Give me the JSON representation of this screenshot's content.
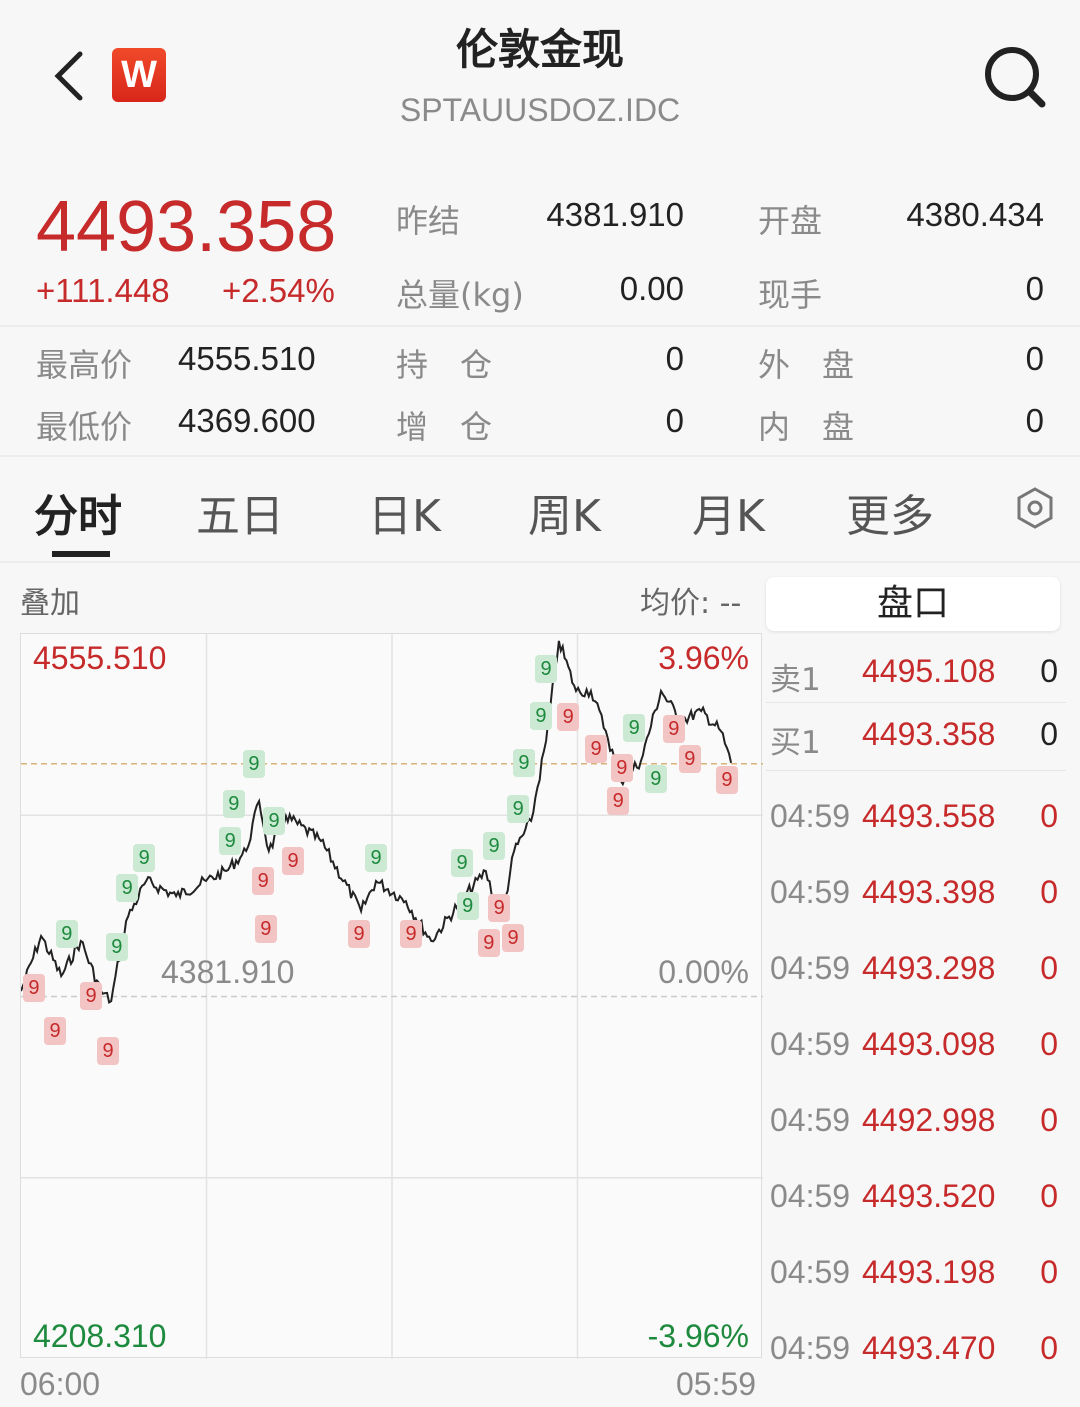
{
  "header": {
    "title": "伦敦金现",
    "code": "SPTAUUSDOZ.IDC",
    "logo_text": "W",
    "back_icon": "chevron-left-icon",
    "search_icon": "search-icon"
  },
  "quote": {
    "price": "4493.358",
    "change": "+111.448",
    "change_pct": "+2.54%",
    "stats": [
      {
        "label": "昨结",
        "value": "4381.910"
      },
      {
        "label": "开盘",
        "value": "4380.434"
      },
      {
        "label": "总量(kg)",
        "value": "0.00"
      },
      {
        "label": "现手",
        "value": "0"
      },
      {
        "label": "最高价",
        "value": "4555.510"
      },
      {
        "label": "持　仓",
        "value": "0"
      },
      {
        "label": "外　盘",
        "value": "0"
      },
      {
        "label": "最低价",
        "value": "4369.600"
      },
      {
        "label": "增　仓",
        "value": "0"
      },
      {
        "label": "内　盘",
        "value": "0"
      }
    ]
  },
  "tabs": [
    {
      "label": "分时",
      "active": true
    },
    {
      "label": "五日"
    },
    {
      "label": "日K"
    },
    {
      "label": "周K"
    },
    {
      "label": "月K"
    },
    {
      "label": "更多"
    }
  ],
  "settings_icon": "hexagon-settings-icon",
  "chart_toolbar": {
    "overlay": "叠加",
    "avg_price": "均价: --"
  },
  "orderbook": {
    "tab": "盘口",
    "levels": [
      {
        "label": "卖1",
        "price": "4495.108",
        "qty": "0"
      },
      {
        "label": "买1",
        "price": "4493.358",
        "qty": "0"
      }
    ],
    "ticks": [
      {
        "time": "04:59",
        "price": "4493.558",
        "qty": "0"
      },
      {
        "time": "04:59",
        "price": "4493.398",
        "qty": "0"
      },
      {
        "time": "04:59",
        "price": "4493.298",
        "qty": "0"
      },
      {
        "time": "04:59",
        "price": "4493.098",
        "qty": "0"
      },
      {
        "time": "04:59",
        "price": "4492.998",
        "qty": "0"
      },
      {
        "time": "04:59",
        "price": "4493.520",
        "qty": "0"
      },
      {
        "time": "04:59",
        "price": "4493.198",
        "qty": "0"
      },
      {
        "time": "04:59",
        "price": "4493.470",
        "qty": "0"
      }
    ]
  },
  "colors": {
    "up": "#c62a2a",
    "down": "#1e8a3e",
    "line": "#222222"
  },
  "chart_data": {
    "type": "line",
    "ylim": [
      4208.31,
      4555.51
    ],
    "reference": 4381.91,
    "current": 4493.358,
    "y_labels": {
      "top": "4555.510",
      "mid": "4381.910",
      "bottom": "4208.310"
    },
    "pct_labels": {
      "top": "3.96%",
      "mid": "0.00%",
      "bottom": "-3.96%"
    },
    "x_labels": {
      "start": "06:00",
      "end": "05:59"
    },
    "grid": true,
    "series": [
      {
        "x": [
          "06:00",
          "06:39",
          "07:18",
          "07:56",
          "08:35",
          "08:55",
          "09:24",
          "10:03",
          "11:01",
          "11:59",
          "12:38",
          "13:17",
          "13:42",
          "14:01",
          "14:34",
          "15:42",
          "17:00",
          "17:29",
          "18:27",
          "19:16",
          "20:14",
          "21:02",
          "21:32",
          "21:57",
          "22:30",
          "22:59",
          "23:24",
          "23:57",
          "00:26",
          "00:55",
          "01:24",
          "02:03",
          "02:42",
          "03:21",
          "04:00",
          "04:38",
          "04:58"
        ],
        "y": [
          4384.5,
          4410.9,
          4391.7,
          4408.5,
          4384.5,
          4379.7,
          4418.1,
          4437.2,
          4430.0,
          4437.2,
          4442.0,
          4451.6,
          4475.5,
          4451.6,
          4468.3,
          4456.4,
          4422.8,
          4437.2,
          4427.6,
          4408.5,
          4427.6,
          4442.0,
          4418.1,
          4451.6,
          4466.0,
          4504.3,
          4552.2,
          4528.2,
          4528.2,
          4509.1,
          4485.1,
          4494.7,
          4528.2,
          4513.8,
          4518.6,
          4509.1,
          4493.8
        ]
      }
    ],
    "markers": {
      "label": "9",
      "red": [
        [
          "06:25",
          4386.0
        ],
        [
          "07:06",
          4379.7
        ],
        [
          "08:16",
          4382.1
        ],
        [
          "08:49",
          4370.2
        ],
        [
          "13:50",
          4451.6
        ],
        [
          "13:55",
          4443.0
        ],
        [
          "14:48",
          4446.8
        ],
        [
          "16:56",
          4411.8
        ],
        [
          "18:37",
          4411.8
        ],
        [
          "21:08",
          4421.9
        ],
        [
          "21:28",
          4409.9
        ],
        [
          "21:55",
          4409.9
        ],
        [
          "23:42",
          4515.8
        ],
        [
          "00:36",
          4500.4
        ],
        [
          "01:19",
          4489.9
        ],
        [
          "01:26",
          4477.0
        ],
        [
          "03:07",
          4495.6
        ],
        [
          "03:38",
          4495.6
        ],
        [
          "04:50",
          4485.6
        ]
      ],
      "green": [
        [
          "07:29",
          4411.8
        ],
        [
          "09:06",
          4405.6
        ],
        [
          "09:26",
          4419.5
        ],
        [
          "09:59",
          4433.9
        ],
        [
          "12:46",
          4456.4
        ],
        [
          "12:53",
          4459.7
        ],
        [
          "13:32",
          4478.9
        ],
        [
          "14:11",
          4480.3
        ],
        [
          "17:29",
          4448.2
        ],
        [
          "20:16",
          4445.8
        ],
        [
          "20:27",
          4439.6
        ],
        [
          "21:18",
          4454.0
        ],
        [
          "22:05",
          4471.7
        ],
        [
          "22:16",
          4479.4
        ],
        [
          "22:49",
          4487.5
        ],
        [
          "22:59",
          4524.4
        ],
        [
          "01:50",
          4510.5
        ],
        [
          "02:32",
          4529.2
        ]
      ]
    }
  }
}
